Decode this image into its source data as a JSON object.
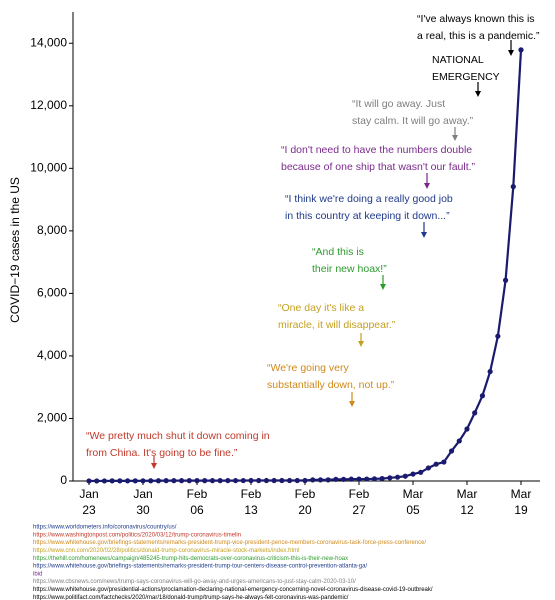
{
  "chart_data": {
    "type": "line",
    "y_label": "COVID−19 cases in the US",
    "categories": [
      "Jan 23",
      null,
      null,
      null,
      null,
      null,
      null,
      "Jan 30",
      null,
      null,
      null,
      null,
      null,
      null,
      "Feb 06",
      null,
      null,
      null,
      null,
      null,
      null,
      "Feb 13",
      null,
      null,
      null,
      null,
      null,
      null,
      "Feb 20",
      null,
      null,
      null,
      null,
      null,
      null,
      "Feb 27",
      null,
      null,
      null,
      null,
      null,
      null,
      "Mar 05",
      null,
      null,
      null,
      null,
      null,
      null,
      "Mar 12",
      null,
      null,
      null,
      null,
      null,
      null,
      "Mar 19"
    ],
    "series": [
      {
        "name": "COVID-19 cases",
        "color": "#1a1a6e",
        "values": [
          1,
          2,
          2,
          5,
          5,
          5,
          5,
          6,
          7,
          8,
          11,
          11,
          11,
          12,
          12,
          12,
          12,
          12,
          13,
          13,
          14,
          15,
          15,
          15,
          15,
          15,
          15,
          15,
          15,
          35,
          35,
          35,
          53,
          53,
          59,
          60,
          62,
          70,
          76,
          101,
          122,
          153,
          221,
          278,
          417,
          537,
          605,
          959,
          1281,
          1663,
          2179,
          2726,
          3499,
          4632,
          6421,
          9415,
          13789
        ]
      }
    ],
    "ylim": [
      0,
      15000
    ],
    "yticks": [
      0,
      {
        "value": 2000,
        "label": "2,000"
      },
      {
        "value": 4000,
        "label": "4,000"
      },
      {
        "value": 6000,
        "label": "6,000"
      },
      {
        "value": 8000,
        "label": "8,000"
      },
      {
        "value": 10000,
        "label": "10,000"
      },
      {
        "value": 12000,
        "label": "12,000"
      },
      {
        "value": 14000,
        "label": "14,000"
      }
    ],
    "grid": false,
    "annotations": [
      {
        "text": [
          "“I've always known this is",
          "a real, this is a pandemic.”"
        ],
        "color": "#000000"
      },
      {
        "text": [
          "NATIONAL",
          "EMERGENCY"
        ],
        "color": "#000000"
      },
      {
        "text": [
          "“It will go away. Just",
          "stay calm. It will go away.”"
        ],
        "color": "#7f7f7f"
      },
      {
        "text": [
          "“I don't need to have the numbers double",
          "because of one ship that wasn't our fault.”"
        ],
        "color": "#7b2a8c"
      },
      {
        "text": [
          "“I think we're doing a really good job",
          "in this country at keeping it down...”"
        ],
        "color": "#1f3a8a"
      },
      {
        "text": [
          "“And this is",
          "their new hoax!”"
        ],
        "color": "#2e9a2e"
      },
      {
        "text": [
          "“One day it's like a",
          "miracle, it will disappear.”"
        ],
        "color": "#c4a020"
      },
      {
        "text": [
          "“We're going very",
          "substantially down, not up.”"
        ],
        "color": "#cf8a1c"
      },
      {
        "text": [
          "“We pretty much shut it down coming in",
          "from China. It's going to be fine.”"
        ],
        "color": "#c0392b"
      }
    ],
    "sources": [
      {
        "text": "https://www.worldometers.info/coronavirus/country/us/",
        "color": "#1f3a8a"
      },
      {
        "text": "https://www.washingtonpost.com/politics/2020/03/12/trump-coronavirus-timelin",
        "color": "#c0392b"
      },
      {
        "text": "https://www.whitehouse.gov/briefings-statements/remarks-president-trump-vice-president-pence-members-coronavirus-task-force-press-conference/",
        "color": "#cf8a1c"
      },
      {
        "text": "https://www.cnn.com/2020/02/28/politics/donald-trump-coronavirus-miracle-stock-markets/index.html",
        "color": "#c4a020"
      },
      {
        "text": "https://thehill.com/homenews/campaign/485245-trump-hits-democrats-over-coronavirus-criticism-this-is-their-new-hoax",
        "color": "#2e9a2e"
      },
      {
        "text": "https://www.whitehouse.gov/briefings-statements/remarks-president-trump-tour-centers-disease-control-prevention-atlanta-ga/",
        "color": "#1f3a8a"
      },
      {
        "text": "ibid",
        "color": "#7b2a8c"
      },
      {
        "text": "https://www.cbsnews.com/news/trump-says-coronavirus-will-go-away-and-urges-americans-to-just-stay-calm-2020-03-10/",
        "color": "#7f7f7f"
      },
      {
        "text": "https://www.whitehouse.gov/presidential-actions/proclamation-declaring-national-emergency-concerning-novel-coronavirus-disease-covid-19-outbreak/",
        "color": "#000000"
      },
      {
        "text": "https://www.politifact.com/factchecks/2020/mar/18/donald-trump/trump-says-he-always-felt-coronavirus-was-pandemic/",
        "color": "#000000"
      }
    ]
  }
}
